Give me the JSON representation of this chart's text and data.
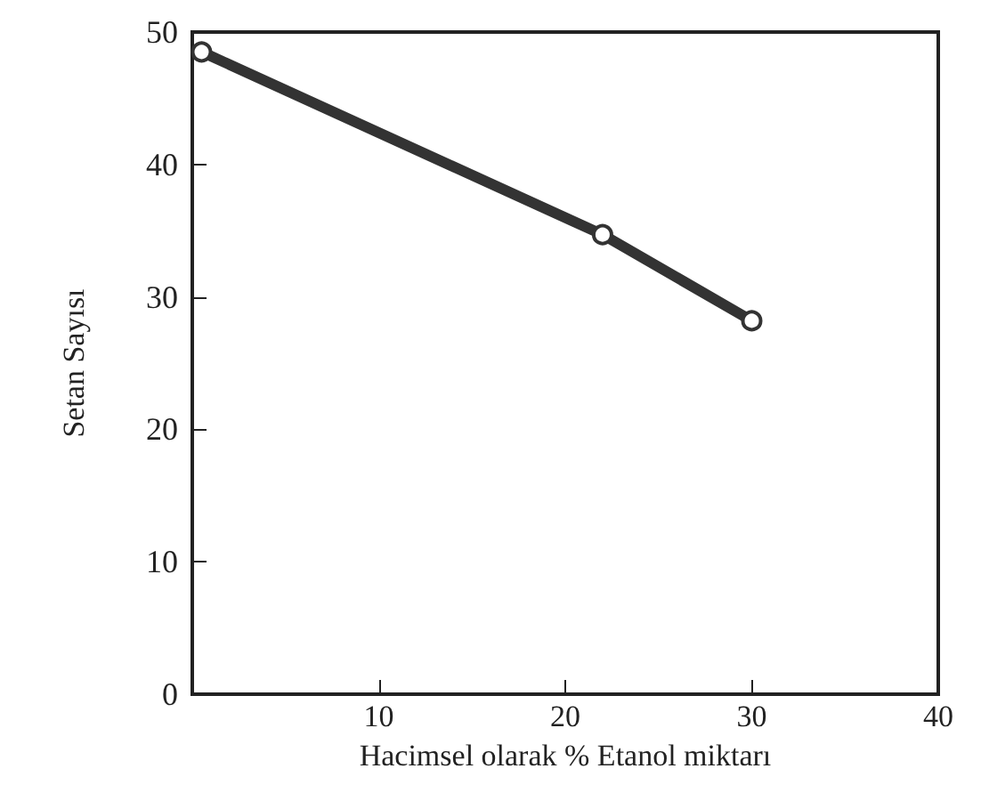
{
  "chart_data": {
    "type": "line",
    "xlabel": "Hacimsel olarak % Etanol miktarı",
    "ylabel": "Setan Sayısı",
    "x": [
      0.5,
      22,
      30
    ],
    "series": [
      {
        "color": "#333333",
        "values": [
          48.5,
          34.7,
          28.2
        ]
      }
    ],
    "xlim": [
      0,
      40
    ],
    "xticks": [
      {
        "value": 0,
        "label": null
      },
      10,
      20,
      30,
      40
    ],
    "ylim": [
      0,
      50
    ],
    "yticks": [
      0,
      10,
      20,
      30,
      40,
      50
    ],
    "grid": false,
    "marker": "circle",
    "line_style": "solid"
  }
}
